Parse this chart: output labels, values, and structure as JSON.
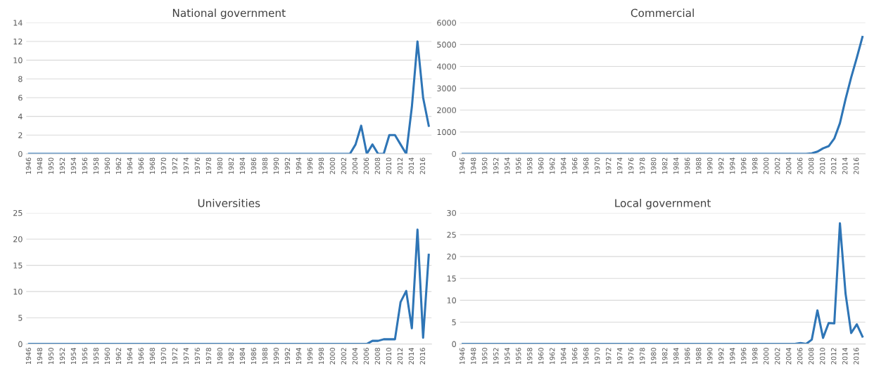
{
  "chart_data": [
    {
      "type": "line",
      "title": "National government",
      "categories": [
        "1946",
        null,
        "1948",
        null,
        "1950",
        null,
        "1952",
        null,
        "1954",
        null,
        "1956",
        null,
        "1958",
        null,
        "1960",
        null,
        "1962",
        null,
        "1964",
        null,
        "1966",
        null,
        "1968",
        null,
        "1970",
        null,
        "1972",
        null,
        "1974",
        null,
        "1976",
        null,
        "1978",
        null,
        "1980",
        null,
        "1982",
        null,
        "1984",
        null,
        "1986",
        null,
        "1988",
        null,
        "1990",
        null,
        "1992",
        null,
        "1994",
        null,
        "1996",
        null,
        "1998",
        null,
        "2000",
        null,
        "2002",
        null,
        "2004",
        null,
        "2006",
        null,
        "2008",
        null,
        "2010",
        null,
        "2012",
        null,
        "2014",
        null,
        "2016",
        null
      ],
      "series": [
        {
          "color": "#2e75b6",
          "values": [
            0,
            0,
            0,
            0,
            0,
            0,
            0,
            0,
            0,
            0,
            0,
            0,
            0,
            0,
            0,
            0,
            0,
            0,
            0,
            0,
            0,
            0,
            0,
            0,
            0,
            0,
            0,
            0,
            0,
            0,
            0,
            0,
            0,
            0,
            0,
            0,
            0,
            0,
            0,
            0,
            0,
            0,
            0,
            0,
            0,
            0,
            0,
            0,
            0,
            0,
            0,
            0,
            0,
            0,
            0,
            0,
            0,
            0,
            1,
            3,
            0,
            1,
            0,
            0,
            2,
            2,
            1,
            0,
            5,
            12,
            6,
            3
          ]
        }
      ],
      "ylim": [
        0,
        14
      ],
      "yticks": [
        0,
        2,
        4,
        6,
        8,
        10,
        12,
        14
      ],
      "grid": "y"
    },
    {
      "type": "line",
      "title": "Commercial",
      "categories": [
        "1946",
        null,
        "1948",
        null,
        "1950",
        null,
        "1952",
        null,
        "1954",
        null,
        "1956",
        null,
        "1958",
        null,
        "1960",
        null,
        "1962",
        null,
        "1964",
        null,
        "1966",
        null,
        "1968",
        null,
        "1970",
        null,
        "1972",
        null,
        "1974",
        null,
        "1976",
        null,
        "1978",
        null,
        "1980",
        null,
        "1982",
        null,
        "1984",
        null,
        "1986",
        null,
        "1988",
        null,
        "1990",
        null,
        "1992",
        null,
        "1994",
        null,
        "1996",
        null,
        "1998",
        null,
        "2000",
        null,
        "2002",
        null,
        "2004",
        null,
        "2006",
        null,
        "2008",
        null,
        "2010",
        null,
        "2012",
        null,
        "2014",
        null,
        "2016",
        null
      ],
      "series": [
        {
          "color": "#2e75b6",
          "values": [
            0,
            0,
            0,
            0,
            0,
            0,
            0,
            0,
            0,
            0,
            0,
            0,
            0,
            0,
            0,
            0,
            0,
            0,
            0,
            0,
            0,
            0,
            0,
            0,
            0,
            0,
            0,
            0,
            0,
            0,
            0,
            0,
            0,
            0,
            0,
            0,
            0,
            0,
            0,
            0,
            0,
            0,
            0,
            0,
            0,
            0,
            0,
            0,
            0,
            0,
            0,
            0,
            0,
            0,
            0,
            0,
            0,
            0,
            0,
            0,
            0,
            0,
            20,
            100,
            250,
            350,
            700,
            1400,
            2500,
            3500,
            4400,
            5350
          ]
        }
      ],
      "ylim": [
        0,
        6000
      ],
      "yticks": [
        0,
        1000,
        2000,
        3000,
        4000,
        5000,
        6000
      ],
      "grid": "y"
    },
    {
      "type": "line",
      "title": "Universities",
      "categories": [
        "1946",
        null,
        "1948",
        null,
        "1950",
        null,
        "1952",
        null,
        "1954",
        null,
        "1956",
        null,
        "1958",
        null,
        "1960",
        null,
        "1962",
        null,
        "1964",
        null,
        "1966",
        null,
        "1968",
        null,
        "1970",
        null,
        "1972",
        null,
        "1974",
        null,
        "1976",
        null,
        "1978",
        null,
        "1980",
        null,
        "1982",
        null,
        "1984",
        null,
        "1986",
        null,
        "1988",
        null,
        "1990",
        null,
        "1992",
        null,
        "1994",
        null,
        "1996",
        null,
        "1998",
        null,
        "2000",
        null,
        "2002",
        null,
        "2004",
        null,
        "2006",
        null,
        "2008",
        null,
        "2010",
        null,
        "2012",
        null,
        "2014",
        null,
        "2016",
        null
      ],
      "series": [
        {
          "color": "#2e75b6",
          "values": [
            0,
            0,
            0,
            0,
            0,
            0,
            0,
            0,
            0,
            0,
            0,
            0,
            0,
            0,
            0,
            0,
            0,
            0,
            0,
            0,
            0,
            0,
            0,
            0,
            0,
            0,
            0,
            0,
            0,
            0,
            0,
            0,
            0,
            0,
            0,
            0,
            0,
            0,
            0,
            0,
            0,
            0,
            0,
            0,
            0,
            0,
            0,
            0,
            0,
            0,
            0,
            0,
            0,
            0,
            0,
            0,
            0,
            0,
            0,
            0,
            0,
            0.6,
            0.6,
            0.9,
            0.9,
            0.9,
            8,
            10.1,
            3,
            21.8,
            1.2,
            17
          ]
        }
      ],
      "ylim": [
        0,
        25
      ],
      "yticks": [
        0,
        5,
        10,
        15,
        20,
        25
      ],
      "grid": "y"
    },
    {
      "type": "line",
      "title": "Local government",
      "categories": [
        "1946",
        null,
        "1948",
        null,
        "1950",
        null,
        "1952",
        null,
        "1954",
        null,
        "1956",
        null,
        "1958",
        null,
        "1960",
        null,
        "1962",
        null,
        "1964",
        null,
        "1966",
        null,
        "1968",
        null,
        "1970",
        null,
        "1972",
        null,
        "1974",
        null,
        "1976",
        null,
        "1978",
        null,
        "1980",
        null,
        "1982",
        null,
        "1984",
        null,
        "1986",
        null,
        "1988",
        null,
        "1990",
        null,
        "1992",
        null,
        "1994",
        null,
        "1996",
        null,
        "1998",
        null,
        "2000",
        null,
        "2002",
        null,
        "2004",
        null,
        "2006",
        null,
        "2008",
        null,
        "2010",
        null,
        "2012",
        null,
        "2014",
        null,
        "2016",
        null
      ],
      "series": [
        {
          "color": "#2e75b6",
          "values": [
            0,
            0,
            0,
            0,
            0,
            0,
            0,
            0,
            0,
            0,
            0,
            0,
            0,
            0,
            0,
            0,
            0,
            0,
            0,
            0,
            0,
            0,
            0,
            0,
            0,
            0,
            0,
            0,
            0,
            0,
            0,
            0,
            0,
            0,
            0,
            0,
            0,
            0,
            0,
            0,
            0,
            0,
            0,
            0,
            0,
            0,
            0,
            0,
            0,
            0,
            0,
            0,
            0,
            0,
            0,
            0,
            0,
            0,
            0,
            0,
            0.2,
            0,
            1,
            7.7,
            1.4,
            4.8,
            4.7,
            27.6,
            11.5,
            2.5,
            4.5,
            1.7
          ]
        }
      ],
      "ylim": [
        0,
        30
      ],
      "yticks": [
        0,
        5,
        10,
        15,
        20,
        25,
        30
      ],
      "grid": "y"
    }
  ]
}
